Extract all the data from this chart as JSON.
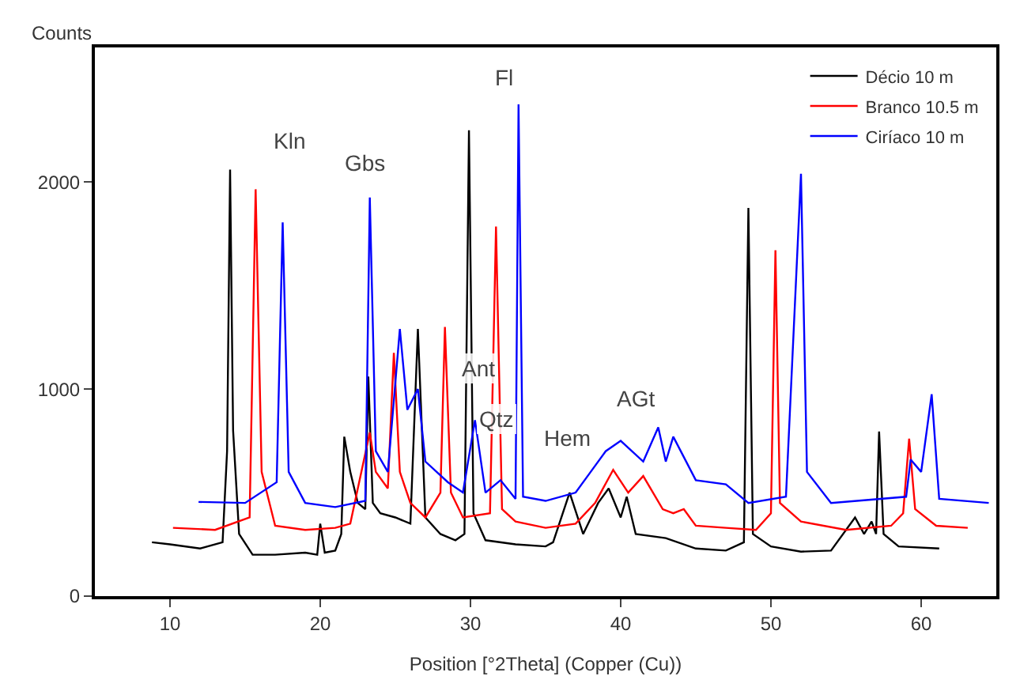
{
  "chart_data": {
    "type": "line",
    "xlabel": "Position [°2Theta] (Copper (Cu))",
    "ylabel": "Counts",
    "xlim": [
      5,
      65
    ],
    "xticks": [
      10,
      20,
      30,
      40,
      50,
      60
    ],
    "ylim": [
      0,
      2650
    ],
    "yticks": [
      0,
      1000,
      2000
    ],
    "legend": "top right",
    "marker": "none",
    "line_style": "solid",
    "series": [
      {
        "name": "Décio 10 m",
        "color": "#000000",
        "x": [
          8.8,
          10,
          12,
          13.5,
          13.8,
          14.0,
          14.2,
          14.6,
          15.5,
          17,
          19,
          19.8,
          20.0,
          20.3,
          21,
          21.4,
          21.6,
          22,
          22.5,
          23.0,
          23.2,
          23.5,
          24,
          25,
          26,
          26.5,
          27,
          28,
          29,
          29.6,
          29.9,
          30.2,
          31,
          33,
          35,
          35.5,
          36.6,
          37.5,
          38.5,
          39.2,
          40.0,
          40.4,
          41,
          43,
          45,
          47,
          48.2,
          48.5,
          48.8,
          50,
          52,
          54,
          55.6,
          56.2,
          56.7,
          57.0,
          57.2,
          57.5,
          58.5,
          61.2
        ],
        "values": [
          260,
          250,
          230,
          260,
          700,
          2060,
          800,
          300,
          200,
          200,
          210,
          200,
          350,
          210,
          220,
          300,
          770,
          600,
          450,
          420,
          1060,
          450,
          400,
          380,
          350,
          1290,
          380,
          300,
          270,
          300,
          2250,
          400,
          270,
          250,
          240,
          260,
          500,
          300,
          450,
          520,
          380,
          480,
          300,
          280,
          230,
          220,
          260,
          1875,
          300,
          240,
          215,
          220,
          380,
          300,
          360,
          300,
          795,
          300,
          240,
          230
        ]
      },
      {
        "name": "Branco 10.5 m",
        "color": "#ff0000",
        "x": [
          10.2,
          13,
          15.3,
          15.7,
          16.1,
          17,
          19,
          21,
          22,
          23.3,
          23.7,
          24.5,
          24.9,
          25.3,
          26,
          27,
          28.0,
          28.3,
          28.7,
          29.5,
          31.3,
          31.7,
          32.1,
          33,
          35,
          37,
          38.3,
          39.5,
          40.5,
          41.5,
          42.8,
          43.5,
          44.2,
          45,
          47,
          49,
          50.0,
          50.3,
          50.6,
          52,
          55,
          58,
          58.8,
          59.2,
          59.6,
          61,
          63.1
        ],
        "values": [
          330,
          320,
          380,
          1965,
          600,
          340,
          320,
          330,
          350,
          790,
          600,
          520,
          1175,
          600,
          450,
          380,
          500,
          1300,
          500,
          380,
          400,
          1785,
          420,
          360,
          330,
          350,
          450,
          610,
          500,
          580,
          420,
          400,
          420,
          340,
          330,
          320,
          400,
          1670,
          450,
          360,
          320,
          340,
          400,
          760,
          420,
          340,
          330
        ]
      },
      {
        "name": "Ciríaco 10 m",
        "color": "#0000ff",
        "x": [
          11.9,
          15,
          17.1,
          17.5,
          17.9,
          19,
          21,
          23,
          23.3,
          23.7,
          24.5,
          25.3,
          25.8,
          26.5,
          27,
          28.5,
          29.5,
          30.3,
          31,
          32,
          33.0,
          33.2,
          33.5,
          35,
          37,
          38,
          39,
          40,
          41.5,
          42.5,
          43.0,
          43.5,
          45,
          47,
          48.5,
          51,
          52.0,
          52.4,
          54,
          59,
          59.3,
          60.0,
          60.7,
          61.2,
          64.5
        ],
        "values": [
          455,
          450,
          550,
          1805,
          600,
          450,
          430,
          460,
          1925,
          700,
          600,
          1290,
          900,
          1000,
          650,
          550,
          500,
          850,
          500,
          560,
          470,
          2375,
          480,
          460,
          500,
          600,
          700,
          750,
          650,
          815,
          650,
          770,
          560,
          540,
          450,
          480,
          2040,
          600,
          450,
          480,
          660,
          600,
          975,
          470,
          450
        ]
      }
    ],
    "annotations": [
      "Kln",
      "Gbs",
      "Fl",
      "Ant",
      "Qtz",
      "Hem",
      "AGt"
    ]
  }
}
